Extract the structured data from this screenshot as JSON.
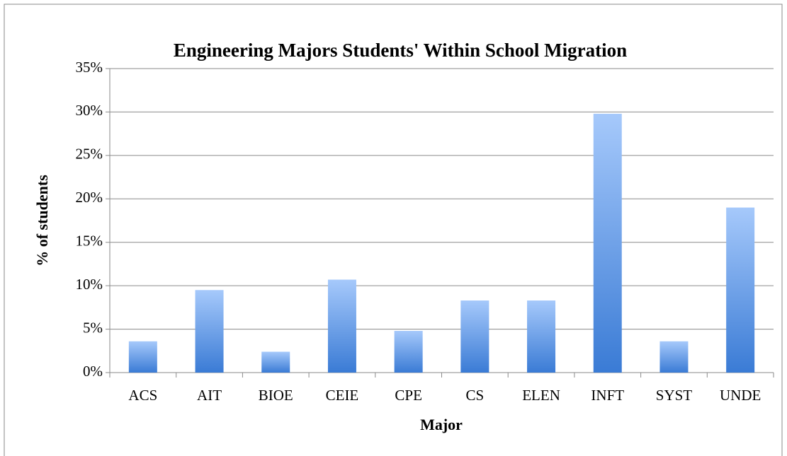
{
  "chart_data": {
    "type": "bar",
    "title": "Engineering Majors Students' Within School Migration",
    "x_label": "Major",
    "y_label": "% of students",
    "categories": [
      "ACS",
      "AIT",
      "BIOE",
      "CEIE",
      "CPE",
      "CS",
      "ELEN",
      "INFT",
      "SYST",
      "UNDE"
    ],
    "values": [
      3.6,
      9.5,
      2.4,
      10.7,
      4.8,
      8.3,
      8.3,
      29.8,
      3.6,
      19.0
    ],
    "gradient": [
      "#a6c9fb",
      "#3a7bd5"
    ],
    "ylim": [
      0,
      35
    ],
    "yticks": [
      {
        "value": 0,
        "label": "0%"
      },
      {
        "value": 5,
        "label": "5%"
      },
      {
        "value": 10,
        "label": "10%"
      },
      {
        "value": 15,
        "label": "15%"
      },
      {
        "value": 20,
        "label": "20%"
      },
      {
        "value": 25,
        "label": "25%"
      },
      {
        "value": 30,
        "label": "30%"
      },
      {
        "value": 35,
        "label": "35%"
      }
    ],
    "grid": true
  }
}
